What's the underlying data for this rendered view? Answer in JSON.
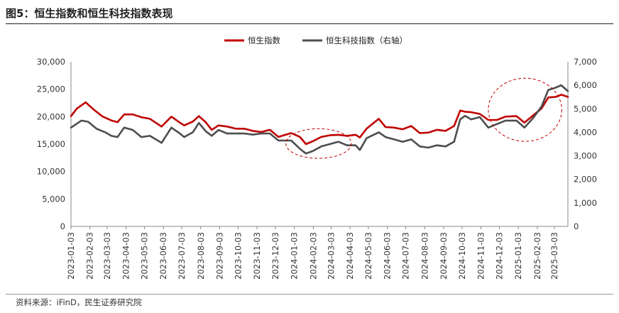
{
  "title": "图5：恒生指数和恒生科技指数表现",
  "source": "资料来源：iFinD，民生证券研究院",
  "chart_data": {
    "type": "line",
    "legend": {
      "position": "top-center"
    },
    "left_axis": {
      "min": 0,
      "max": 30000,
      "ticks": [
        "0",
        "5,000",
        "10,000",
        "15,000",
        "20,000",
        "25,000",
        "30,000"
      ]
    },
    "right_axis": {
      "min": 0,
      "max": 7000,
      "ticks": [
        "0",
        "1,000",
        "2,000",
        "3,000",
        "4,000",
        "5,000",
        "6,000",
        "7,000"
      ]
    },
    "x_ticks": [
      "2023-01-03",
      "2023-02-03",
      "2023-03-03",
      "2023-04-03",
      "2023-05-03",
      "2023-06-03",
      "2023-07-03",
      "2023-08-03",
      "2023-09-03",
      "2023-10-03",
      "2023-11-03",
      "2023-12-03",
      "2024-01-03",
      "2024-02-03",
      "2024-03-03",
      "2024-04-03",
      "2024-05-03",
      "2024-06-03",
      "2024-07-03",
      "2024-08-03",
      "2024-09-03",
      "2024-10-03",
      "2024-11-03",
      "2024-12-03",
      "2025-01-03",
      "2025-02-03",
      "2025-03-03"
    ],
    "x_range": [
      "2023-01-03",
      "2025-03-25"
    ],
    "series": [
      {
        "name": "恒生指数",
        "axis": "left",
        "color": "#c00000",
        "points": [
          [
            "2023-01-03",
            20100
          ],
          [
            "2023-01-13",
            21500
          ],
          [
            "2023-01-27",
            22600
          ],
          [
            "2023-02-10",
            21200
          ],
          [
            "2023-02-24",
            20000
          ],
          [
            "2023-03-10",
            19300
          ],
          [
            "2023-03-20",
            19000
          ],
          [
            "2023-03-31",
            20400
          ],
          [
            "2023-04-14",
            20400
          ],
          [
            "2023-04-28",
            19900
          ],
          [
            "2023-05-12",
            19600
          ],
          [
            "2023-05-31",
            18200
          ],
          [
            "2023-06-16",
            20000
          ],
          [
            "2023-06-30",
            18900
          ],
          [
            "2023-07-07",
            18400
          ],
          [
            "2023-07-21",
            19100
          ],
          [
            "2023-07-31",
            20100
          ],
          [
            "2023-08-11",
            19000
          ],
          [
            "2023-08-21",
            17600
          ],
          [
            "2023-09-01",
            18400
          ],
          [
            "2023-09-15",
            18200
          ],
          [
            "2023-09-29",
            17800
          ],
          [
            "2023-10-13",
            17800
          ],
          [
            "2023-10-27",
            17400
          ],
          [
            "2023-11-10",
            17200
          ],
          [
            "2023-11-24",
            17600
          ],
          [
            "2023-12-08",
            16300
          ],
          [
            "2023-12-29",
            17000
          ],
          [
            "2024-01-12",
            16300
          ],
          [
            "2024-01-22",
            15000
          ],
          [
            "2024-02-02",
            15500
          ],
          [
            "2024-02-16",
            16300
          ],
          [
            "2024-03-01",
            16600
          ],
          [
            "2024-03-15",
            16700
          ],
          [
            "2024-03-29",
            16500
          ],
          [
            "2024-04-12",
            16700
          ],
          [
            "2024-04-19",
            16200
          ],
          [
            "2024-04-30",
            17800
          ],
          [
            "2024-05-20",
            19600
          ],
          [
            "2024-05-31",
            18100
          ],
          [
            "2024-06-14",
            18000
          ],
          [
            "2024-06-28",
            17700
          ],
          [
            "2024-07-12",
            18300
          ],
          [
            "2024-07-26",
            17000
          ],
          [
            "2024-08-09",
            17100
          ],
          [
            "2024-08-23",
            17600
          ],
          [
            "2024-09-06",
            17400
          ],
          [
            "2024-09-20",
            18300
          ],
          [
            "2024-09-30",
            21100
          ],
          [
            "2024-10-08",
            20900
          ],
          [
            "2024-10-18",
            20800
          ],
          [
            "2024-11-01",
            20500
          ],
          [
            "2024-11-15",
            19400
          ],
          [
            "2024-11-29",
            19400
          ],
          [
            "2024-12-13",
            20000
          ],
          [
            "2024-12-31",
            20100
          ],
          [
            "2025-01-13",
            18900
          ],
          [
            "2025-01-27",
            20200
          ],
          [
            "2025-02-10",
            21500
          ],
          [
            "2025-02-21",
            23500
          ],
          [
            "2025-03-05",
            23600
          ],
          [
            "2025-03-14",
            24000
          ],
          [
            "2025-03-25",
            23600
          ]
        ]
      },
      {
        "name": "恒生科技指数（右轴）",
        "axis": "right",
        "color": "#4d4d4d",
        "points": [
          [
            "2023-01-03",
            4200
          ],
          [
            "2023-01-20",
            4500
          ],
          [
            "2023-01-31",
            4450
          ],
          [
            "2023-02-14",
            4150
          ],
          [
            "2023-02-28",
            4000
          ],
          [
            "2023-03-10",
            3850
          ],
          [
            "2023-03-20",
            3800
          ],
          [
            "2023-03-31",
            4200
          ],
          [
            "2023-04-14",
            4100
          ],
          [
            "2023-04-28",
            3800
          ],
          [
            "2023-05-12",
            3850
          ],
          [
            "2023-05-31",
            3550
          ],
          [
            "2023-06-16",
            4200
          ],
          [
            "2023-06-30",
            3950
          ],
          [
            "2023-07-07",
            3800
          ],
          [
            "2023-07-21",
            4000
          ],
          [
            "2023-07-31",
            4400
          ],
          [
            "2023-08-11",
            4050
          ],
          [
            "2023-08-21",
            3850
          ],
          [
            "2023-09-01",
            4100
          ],
          [
            "2023-09-15",
            3950
          ],
          [
            "2023-09-29",
            3950
          ],
          [
            "2023-10-13",
            3950
          ],
          [
            "2023-10-27",
            3900
          ],
          [
            "2023-11-10",
            3950
          ],
          [
            "2023-11-24",
            3950
          ],
          [
            "2023-12-08",
            3650
          ],
          [
            "2023-12-29",
            3650
          ],
          [
            "2024-01-12",
            3300
          ],
          [
            "2024-01-22",
            3100
          ],
          [
            "2024-02-02",
            3200
          ],
          [
            "2024-02-16",
            3400
          ],
          [
            "2024-03-01",
            3500
          ],
          [
            "2024-03-15",
            3600
          ],
          [
            "2024-03-29",
            3450
          ],
          [
            "2024-04-12",
            3450
          ],
          [
            "2024-04-19",
            3250
          ],
          [
            "2024-04-30",
            3750
          ],
          [
            "2024-05-20",
            4000
          ],
          [
            "2024-05-31",
            3800
          ],
          [
            "2024-06-14",
            3700
          ],
          [
            "2024-06-28",
            3600
          ],
          [
            "2024-07-12",
            3700
          ],
          [
            "2024-07-26",
            3400
          ],
          [
            "2024-08-09",
            3350
          ],
          [
            "2024-08-23",
            3450
          ],
          [
            "2024-09-06",
            3400
          ],
          [
            "2024-09-20",
            3600
          ],
          [
            "2024-09-30",
            4550
          ],
          [
            "2024-10-08",
            4700
          ],
          [
            "2024-10-18",
            4550
          ],
          [
            "2024-11-01",
            4650
          ],
          [
            "2024-11-15",
            4200
          ],
          [
            "2024-11-29",
            4350
          ],
          [
            "2024-12-13",
            4500
          ],
          [
            "2024-12-31",
            4500
          ],
          [
            "2025-01-13",
            4200
          ],
          [
            "2025-01-27",
            4600
          ],
          [
            "2025-02-10",
            5100
          ],
          [
            "2025-02-21",
            5800
          ],
          [
            "2025-03-05",
            5900
          ],
          [
            "2025-03-14",
            6000
          ],
          [
            "2025-03-25",
            5750
          ]
        ]
      }
    ],
    "highlight_ellipses": [
      {
        "x_from": "2023-12-20",
        "x_to": "2024-04-05",
        "axis": "left",
        "y_from": 12400,
        "y_to": 17800
      },
      {
        "x_from": "2024-11-15",
        "x_to": "2025-03-15",
        "axis": "left",
        "y_from": 15500,
        "y_to": 27000
      }
    ]
  }
}
